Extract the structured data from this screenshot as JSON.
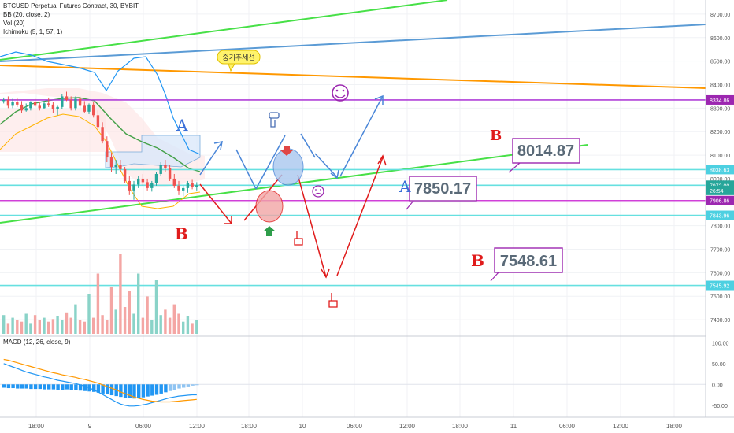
{
  "header": {
    "title": "BTCUSD Perpetual Futures Contract, 30, BYBIT",
    "indicators": [
      "BB (20, close, 2)",
      "Vol (20)",
      "Ichimoku (5, 1, 57, 1)"
    ]
  },
  "macd_header": "MACD (12, 26, close, 9)",
  "price_axis": {
    "range": [
      7330,
      8760
    ],
    "ticks": [
      8700,
      8600,
      8500,
      8400,
      8300,
      8200,
      8100,
      8000,
      7900,
      7800,
      7700,
      7600,
      7500,
      7400
    ],
    "tick_labels": [
      "8700.00",
      "8600.00",
      "8500.00",
      "8400.00",
      "8300.00",
      "8200.00",
      "8100.00",
      "8000.00",
      "7900.00",
      "7800.00",
      "7700.00",
      "7600.00",
      "7500.00",
      "7400.00"
    ],
    "badges": [
      {
        "value": 8334.86,
        "label": "8334.86",
        "color": "#9c27b0"
      },
      {
        "value": 8038.63,
        "label": "8038.63",
        "color": "#4dd0e1"
      },
      {
        "value": 7972.0,
        "label": "7972.00",
        "color": "#26a69a"
      },
      {
        "value": 7950,
        "label": "26:54",
        "color": "#26a69a"
      },
      {
        "value": 7906.86,
        "label": "7906.86",
        "color": "#9c27b0"
      },
      {
        "value": 7843.96,
        "label": "7843.96",
        "color": "#4dd0e1"
      },
      {
        "value": 7545.92,
        "label": "7545.92",
        "color": "#4dd0e1"
      }
    ]
  },
  "macd_axis": {
    "range": [
      -75,
      110
    ],
    "ticks": [
      100,
      50,
      0,
      -50
    ],
    "tick_labels": [
      "100.00",
      "50.00",
      "0.00",
      "-50.00"
    ]
  },
  "time_axis": {
    "labels": [
      "18:00",
      "9",
      "06:00",
      "12:00",
      "18:00",
      "10",
      "06:00",
      "12:00",
      "18:00",
      "11",
      "06:00",
      "12:00",
      "18:00"
    ]
  },
  "horizontal_levels": [
    {
      "value": 8334.86,
      "color": "#b040d8"
    },
    {
      "value": 8038.63,
      "color": "#66e0e0"
    },
    {
      "value": 7972.0,
      "color": "#66e0e0"
    },
    {
      "value": 7906.86,
      "color": "#d040d8"
    },
    {
      "value": 7843.96,
      "color": "#66e0e0"
    },
    {
      "value": 7545.92,
      "color": "#66e0e0"
    }
  ],
  "annotations": {
    "trend_label": "중기추세선",
    "price_boxes": [
      {
        "label": "8014.87",
        "value": 8014.87
      },
      {
        "label": "7850.17",
        "value": 7850.17
      },
      {
        "label": "7548.61",
        "value": 7548.61
      }
    ],
    "letters": [
      {
        "text": "A",
        "color": "#3b6fd8"
      },
      {
        "text": "B",
        "color": "#e01b1b"
      },
      {
        "text": "B",
        "color": "#e01b1b"
      },
      {
        "text": "A",
        "color": "#3b6fd8"
      },
      {
        "text": "B",
        "color": "#e01b1b"
      }
    ]
  },
  "chart_data": {
    "type": "candlestick",
    "symbol": "BTCUSD",
    "interval": "30",
    "exchange": "BYBIT",
    "ylim": [
      7330,
      8760
    ],
    "candles": [
      [
        8330,
        8345,
        8320,
        8335
      ],
      [
        8335,
        8350,
        8300,
        8310
      ],
      [
        8310,
        8340,
        8300,
        8325
      ],
      [
        8325,
        8345,
        8305,
        8315
      ],
      [
        8315,
        8330,
        8280,
        8290
      ],
      [
        8290,
        8320,
        8285,
        8300
      ],
      [
        8300,
        8330,
        8290,
        8325
      ],
      [
        8325,
        8340,
        8305,
        8310
      ],
      [
        8310,
        8325,
        8290,
        8300
      ],
      [
        8300,
        8330,
        8295,
        8320
      ],
      [
        8320,
        8345,
        8305,
        8315
      ],
      [
        8315,
        8325,
        8280,
        8295
      ],
      [
        8295,
        8310,
        8270,
        8305
      ],
      [
        8305,
        8360,
        8295,
        8350
      ],
      [
        8350,
        8370,
        8330,
        8335
      ],
      [
        8335,
        8350,
        8290,
        8300
      ],
      [
        8300,
        8350,
        8290,
        8340
      ],
      [
        8340,
        8350,
        8300,
        8310
      ],
      [
        8310,
        8330,
        8280,
        8285
      ],
      [
        8285,
        8320,
        8275,
        8315
      ],
      [
        8315,
        8325,
        8260,
        8270
      ],
      [
        8270,
        8290,
        8210,
        8220
      ],
      [
        8220,
        8240,
        8150,
        8160
      ],
      [
        8160,
        8180,
        8070,
        8090
      ],
      [
        8090,
        8110,
        8030,
        8050
      ],
      [
        8050,
        8080,
        8020,
        8060
      ],
      [
        8060,
        8080,
        8030,
        8040
      ],
      [
        8040,
        8050,
        7980,
        7990
      ],
      [
        7990,
        8010,
        7930,
        7950
      ],
      [
        7950,
        7990,
        7910,
        7975
      ],
      [
        7975,
        8010,
        7960,
        8000
      ],
      [
        8000,
        8020,
        7970,
        7985
      ],
      [
        7985,
        8000,
        7950,
        7960
      ],
      [
        7960,
        7990,
        7945,
        7980
      ],
      [
        7980,
        8030,
        7970,
        8020
      ],
      [
        8020,
        8070,
        8010,
        8060
      ],
      [
        8060,
        8080,
        8030,
        8045
      ],
      [
        8045,
        8060,
        7990,
        8000
      ],
      [
        8000,
        8020,
        7960,
        7970
      ],
      [
        7970,
        7990,
        7930,
        7950
      ],
      [
        7950,
        7970,
        7925,
        7960
      ],
      [
        7960,
        7990,
        7940,
        7980
      ],
      [
        7980,
        7995,
        7955,
        7965
      ],
      [
        7965,
        7985,
        7950,
        7972
      ]
    ],
    "volume": [
      14,
      8,
      12,
      10,
      9,
      15,
      8,
      14,
      10,
      12,
      9,
      11,
      13,
      10,
      16,
      12,
      22,
      10,
      9,
      30,
      12,
      45,
      14,
      10,
      35,
      18,
      60,
      20,
      32,
      15,
      45,
      12,
      28,
      10,
      40,
      14,
      18,
      12,
      22,
      15,
      9,
      13,
      8,
      10
    ],
    "macd_hist": [
      -8,
      -9,
      -9,
      -10,
      -10,
      -10,
      -11,
      -11,
      -11,
      -12,
      -12,
      -12,
      -13,
      -13,
      -12,
      -13,
      -14,
      -15,
      -16,
      -17,
      -18,
      -20,
      -22,
      -24,
      -26,
      -28,
      -30,
      -32,
      -33,
      -34,
      -33,
      -31,
      -29,
      -27,
      -25,
      -22,
      -19,
      -16,
      -13,
      -10,
      -8,
      -5,
      -3,
      -1
    ],
    "macd_line": [
      50,
      46,
      42,
      38,
      34,
      30,
      27,
      24,
      21,
      18,
      16,
      13,
      10,
      8,
      6,
      4,
      2,
      -1,
      -4,
      -8,
      -13,
      -18,
      -24,
      -30,
      -36,
      -42,
      -47,
      -50,
      -52,
      -52,
      -51,
      -49,
      -47,
      -44,
      -41,
      -38,
      -35,
      -32,
      -30,
      -28,
      -27,
      -26,
      -25,
      -25
    ],
    "signal_line": [
      60,
      58,
      55,
      52,
      49,
      46,
      43,
      40,
      37,
      34,
      31,
      28,
      26,
      23,
      21,
      19,
      17,
      14,
      12,
      9,
      6,
      3,
      -1,
      -5,
      -9,
      -13,
      -18,
      -22,
      -26,
      -30,
      -33,
      -36,
      -38,
      -40,
      -41,
      -42,
      -42,
      -42,
      -41,
      -40,
      -39,
      -38,
      -37,
      -36
    ]
  }
}
